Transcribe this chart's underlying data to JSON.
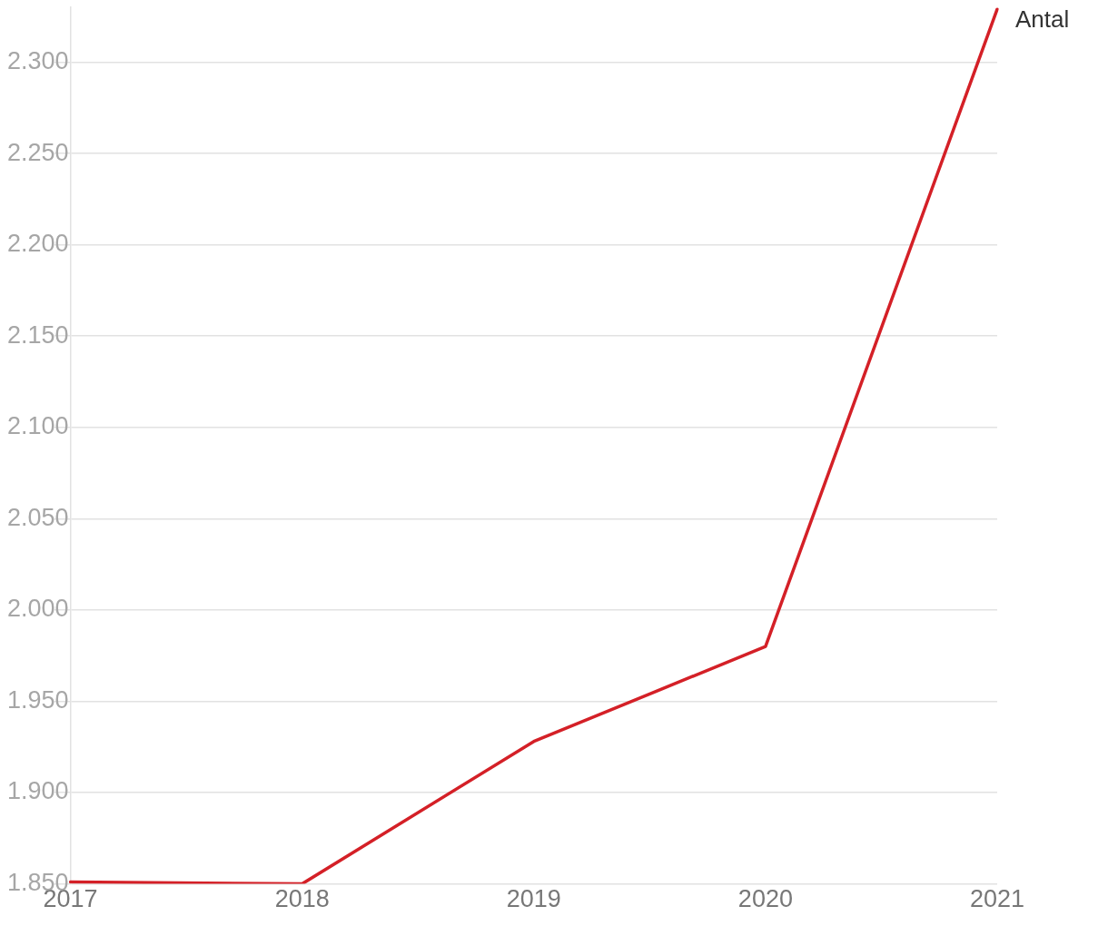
{
  "chart_data": {
    "type": "line",
    "categories": [
      "2017",
      "2018",
      "2019",
      "2020",
      "2021"
    ],
    "series": [
      {
        "name": "Antal",
        "color": "#d42027",
        "values": [
          1851,
          1850,
          1928,
          1980,
          2329
        ]
      }
    ],
    "ylim": [
      1850,
      2330
    ],
    "yticks": [
      {
        "value": 1850,
        "label": "1.850"
      },
      {
        "value": 1900,
        "label": "1.900"
      },
      {
        "value": 1950,
        "label": "1.950"
      },
      {
        "value": 2000,
        "label": "2.000"
      },
      {
        "value": 2050,
        "label": "2.050"
      },
      {
        "value": 2100,
        "label": "2.100"
      },
      {
        "value": 2150,
        "label": "2.150"
      },
      {
        "value": 2200,
        "label": "2.200"
      },
      {
        "value": 2250,
        "label": "2.250"
      },
      {
        "value": 2300,
        "label": "2.300"
      }
    ],
    "grid": "y",
    "legend": false,
    "marker": "none",
    "line_style": "solid"
  }
}
